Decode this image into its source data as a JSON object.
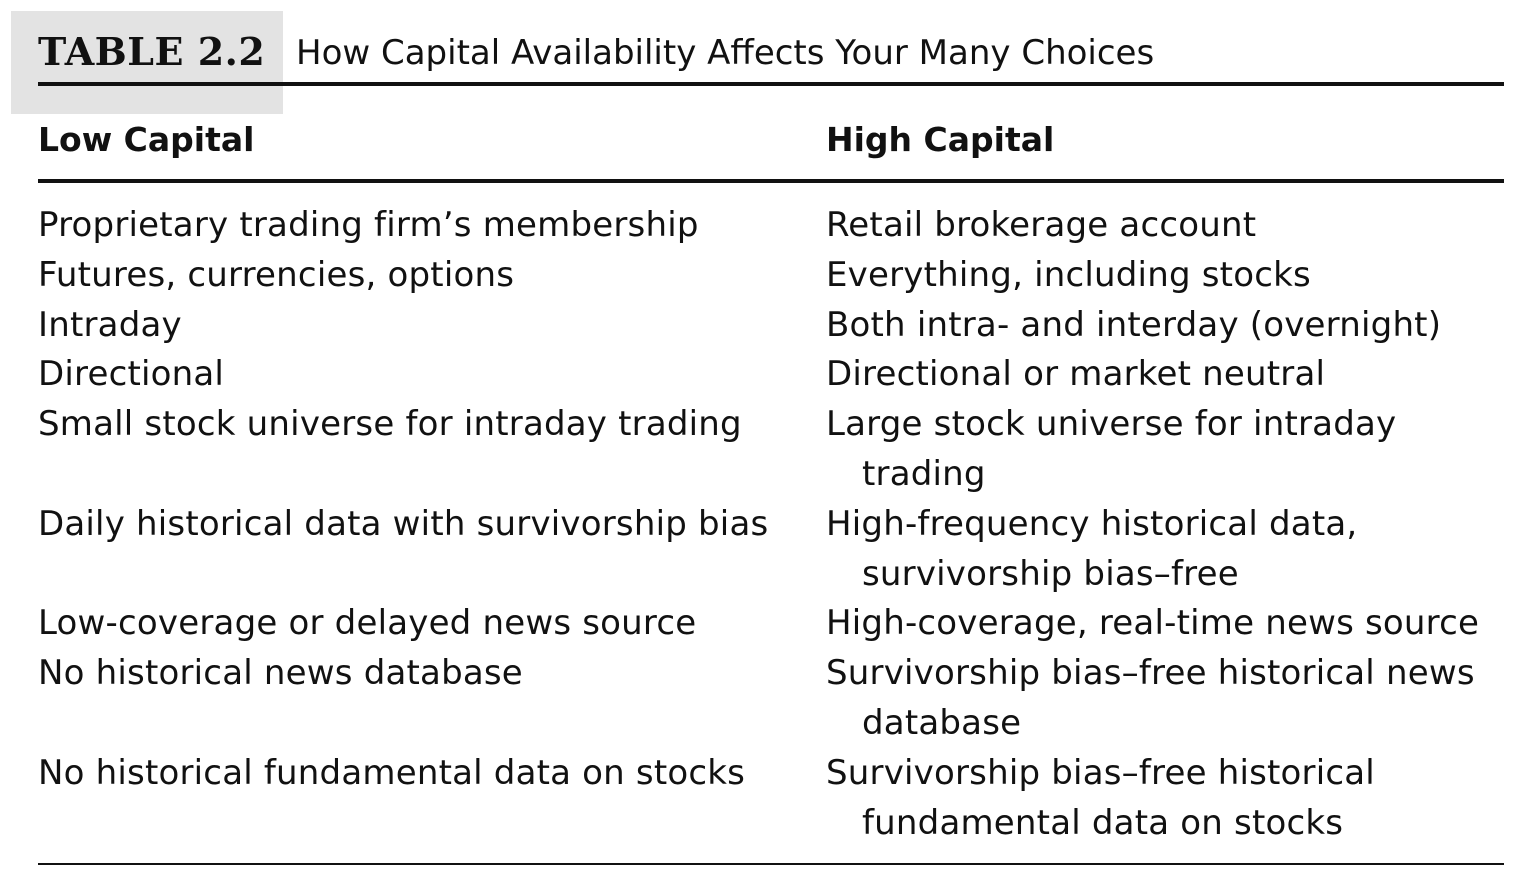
{
  "table": {
    "label": "TABLE 2.2",
    "title": "How Capital Availability Affects Your Many Choices",
    "headers": {
      "left": "Low Capital",
      "right": "High Capital"
    },
    "rows": [
      {
        "low": "Proprietary trading firm’s membership",
        "high": "Retail brokerage account"
      },
      {
        "low": "Futures, currencies, options",
        "high": "Everything, including stocks"
      },
      {
        "low": "Intraday",
        "high": "Both intra- and interday (overnight)"
      },
      {
        "low": "Directional",
        "high": "Directional or market neutral"
      },
      {
        "low": "Small stock universe for intraday trading",
        "high": "Large stock universe for intraday trading"
      },
      {
        "low": "Daily historical data with survivorship bias",
        "high": "High-frequency historical data, survivorship bias–free"
      },
      {
        "low": "Low-coverage or delayed news source",
        "high": "High-coverage, real-time news source"
      },
      {
        "low": "No historical news database",
        "high": "Survivorship bias–free historical news database"
      },
      {
        "low": "No historical fundamental data on stocks",
        "high": "Survivorship bias–free historical fundamental data on stocks"
      }
    ]
  }
}
